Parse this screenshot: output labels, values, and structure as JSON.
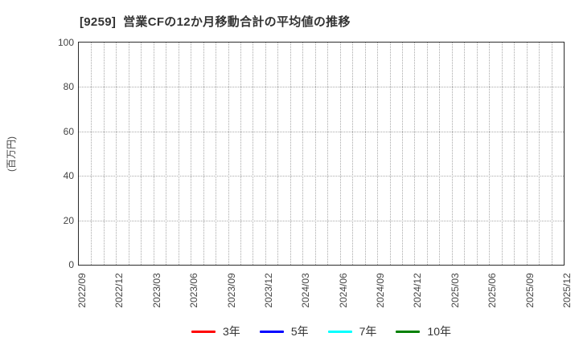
{
  "chart_data": {
    "type": "line",
    "title": "[9259]  営業CFの12か月移動合計の平均値の推移",
    "ylabel": "(百万円)",
    "ylim": [
      0,
      100
    ],
    "yticks": [
      0,
      20,
      40,
      60,
      80,
      100
    ],
    "x_labels": [
      "2022/09",
      "2022/12",
      "2023/03",
      "2023/06",
      "2023/09",
      "2023/12",
      "2024/03",
      "2024/06",
      "2024/09",
      "2024/12",
      "2025/03",
      "2025/06",
      "2025/09",
      "2025/12"
    ],
    "minor_x_divisions_per_label": 3,
    "grid": true,
    "legend_position": "bottom",
    "series": [
      {
        "name": "3年",
        "color": "#ff0000",
        "values": []
      },
      {
        "name": "5年",
        "color": "#0000ff",
        "values": []
      },
      {
        "name": "7年",
        "color": "#00ffff",
        "values": []
      },
      {
        "name": "10年",
        "color": "#008000",
        "values": []
      }
    ]
  }
}
